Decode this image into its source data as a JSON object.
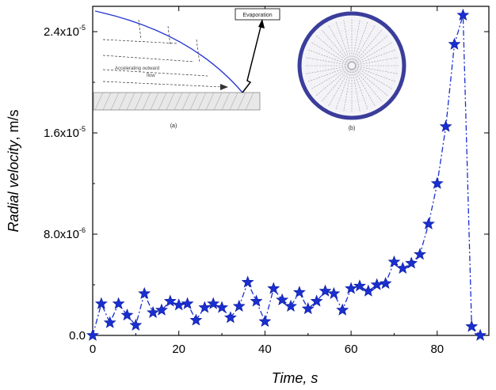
{
  "chart_data": {
    "type": "line",
    "title": "",
    "xlabel": "Time",
    "xlabel_unit": "s",
    "ylabel": "Radial velocity",
    "ylabel_unit": "m/s",
    "xlim": [
      0,
      92
    ],
    "ylim": [
      0,
      2.6e-05
    ],
    "x_ticks": [
      0,
      20,
      40,
      60,
      80
    ],
    "x_tick_labels": [
      "0",
      "20",
      "40",
      "60",
      "80"
    ],
    "y_ticks": [
      0,
      8e-06,
      1.6e-05,
      2.4e-05
    ],
    "y_tick_labels": [
      {
        "mantissa": "0.0",
        "exp": ""
      },
      {
        "mantissa": "8.0x10",
        "exp": "-6"
      },
      {
        "mantissa": "1.6x10",
        "exp": "-5"
      },
      {
        "mantissa": "2.4x10",
        "exp": "-5"
      }
    ],
    "grid": false,
    "marker": "star",
    "line_style": "dash-dot",
    "color": "#1a2fd0",
    "series": [
      {
        "x": [
          0,
          2,
          4,
          6,
          8,
          10,
          12,
          14,
          16,
          18,
          20,
          22,
          24,
          26,
          28,
          30,
          32,
          34,
          36,
          38,
          40,
          42,
          44,
          46,
          48,
          50,
          52,
          54,
          56,
          58,
          60,
          62,
          64,
          66,
          68,
          70,
          72,
          74,
          76,
          78,
          80,
          82,
          84,
          86,
          88,
          90
        ],
        "y": [
          0,
          2.5e-06,
          1e-06,
          2.5e-06,
          1.6e-06,
          8e-07,
          3.3e-06,
          1.8e-06,
          2e-06,
          2.7e-06,
          2.4e-06,
          2.5e-06,
          1.2e-06,
          2.2e-06,
          2.5e-06,
          2.2e-06,
          1.4e-06,
          2.3e-06,
          4.2e-06,
          2.7e-06,
          1.1e-06,
          3.7e-06,
          2.8e-06,
          2.3e-06,
          3.4e-06,
          2.1e-06,
          2.7e-06,
          3.5e-06,
          3.3e-06,
          2e-06,
          3.7e-06,
          3.9e-06,
          3.5e-06,
          4e-06,
          4.1e-06,
          5.8e-06,
          5.3e-06,
          5.7e-06,
          6.4e-06,
          8.8e-06,
          1.2e-05,
          1.65e-05,
          2.3e-05,
          2.53e-05,
          7e-07,
          0
        ]
      }
    ]
  },
  "insets": {
    "a": {
      "label": "(a)",
      "evaporation_label": "Evaporation",
      "flow_label_1": "Accelerating outward",
      "flow_label_2": "flow"
    },
    "b": {
      "label": "(b)",
      "ring_color": "#3a3d9a"
    }
  }
}
